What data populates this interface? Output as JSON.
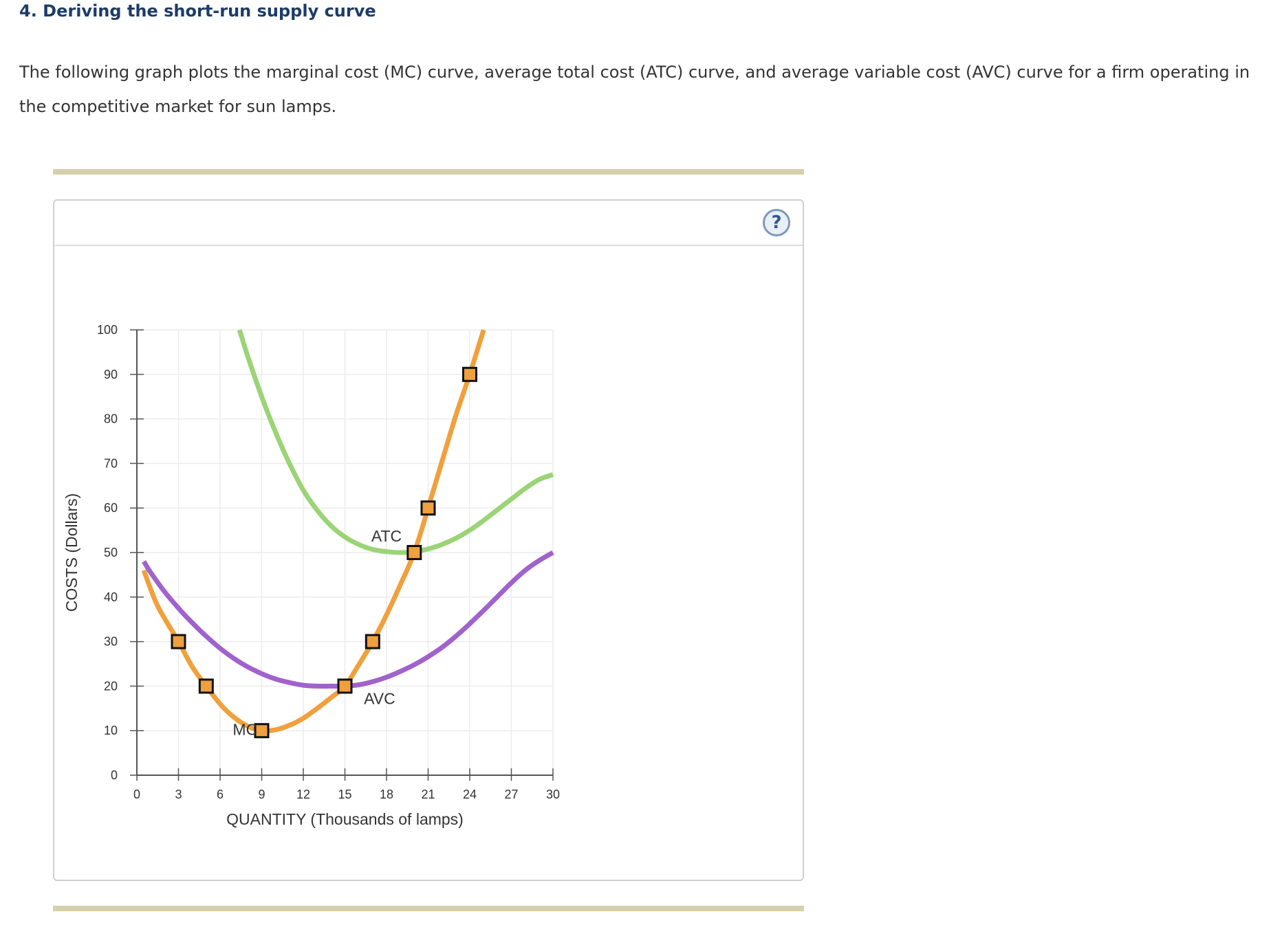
{
  "heading": "4. Deriving the short-run supply curve",
  "intro": "The following graph plots the marginal cost (MC) curve, average total cost (ATC) curve, and average variable cost (AVC) curve for a firm operating in the competitive market for sun lamps.",
  "help": {
    "label": "?"
  },
  "colors": {
    "mc": "#f0a03c",
    "atc": "#9bd476",
    "avc": "#a062cc",
    "rule": "#d6d0aa"
  },
  "chart_data": {
    "type": "line",
    "xlabel": "QUANTITY (Thousands of lamps)",
    "ylabel": "COSTS (Dollars)",
    "xlim": [
      0,
      30
    ],
    "ylim": [
      0,
      100
    ],
    "xticks": [
      0,
      3,
      6,
      9,
      12,
      15,
      18,
      21,
      24,
      27,
      30
    ],
    "yticks": [
      0,
      10,
      20,
      30,
      40,
      50,
      60,
      70,
      80,
      90,
      100
    ],
    "grid": true,
    "series": [
      {
        "name": "MC",
        "color": "#f0a03c",
        "points": [
          [
            0.5,
            46
          ],
          [
            1.5,
            38
          ],
          [
            3,
            30
          ],
          [
            4,
            24.3
          ],
          [
            5,
            20
          ],
          [
            6,
            16
          ],
          [
            7,
            13
          ],
          [
            8,
            11
          ],
          [
            9,
            10
          ],
          [
            10,
            10.2
          ],
          [
            11,
            11.2
          ],
          [
            12,
            12.8
          ],
          [
            13,
            15
          ],
          [
            14,
            17.4
          ],
          [
            15,
            20
          ],
          [
            16,
            24.8
          ],
          [
            17,
            30
          ],
          [
            18,
            36
          ],
          [
            19,
            42.8
          ],
          [
            20,
            50
          ],
          [
            21,
            60
          ],
          [
            22,
            70.5
          ],
          [
            23,
            80.8
          ],
          [
            24,
            90
          ],
          [
            24.5,
            95
          ],
          [
            25,
            100
          ]
        ],
        "markers": [
          [
            3,
            30
          ],
          [
            5,
            20
          ],
          [
            9,
            10
          ],
          [
            15,
            20
          ],
          [
            17,
            30
          ],
          [
            20,
            50
          ],
          [
            21,
            60
          ],
          [
            24,
            90
          ]
        ]
      },
      {
        "name": "ATC",
        "color": "#9bd476",
        "points": [
          [
            7.4,
            100
          ],
          [
            8,
            94
          ],
          [
            9,
            85
          ],
          [
            10,
            77
          ],
          [
            11,
            70
          ],
          [
            12,
            64
          ],
          [
            13,
            59.5
          ],
          [
            14,
            56
          ],
          [
            15,
            53.5
          ],
          [
            16,
            51.8
          ],
          [
            17,
            50.7
          ],
          [
            18,
            50.2
          ],
          [
            19,
            50
          ],
          [
            20,
            50.2
          ],
          [
            21,
            50.8
          ],
          [
            22,
            51.8
          ],
          [
            23,
            53.2
          ],
          [
            24,
            55
          ],
          [
            25,
            57.2
          ],
          [
            26,
            59.6
          ],
          [
            27,
            62
          ],
          [
            28,
            64.4
          ],
          [
            29,
            66.4
          ],
          [
            30,
            67.5
          ]
        ]
      },
      {
        "name": "AVC",
        "color": "#a062cc",
        "points": [
          [
            0.5,
            48
          ],
          [
            1,
            45.5
          ],
          [
            2,
            41.2
          ],
          [
            3,
            37.5
          ],
          [
            4,
            34.2
          ],
          [
            5,
            31.2
          ],
          [
            6,
            28.5
          ],
          [
            7,
            26.2
          ],
          [
            8,
            24.3
          ],
          [
            9,
            22.8
          ],
          [
            10,
            21.6
          ],
          [
            11,
            20.8
          ],
          [
            12,
            20.2
          ],
          [
            13,
            20
          ],
          [
            14,
            20
          ],
          [
            15,
            20
          ],
          [
            16,
            20.3
          ],
          [
            17,
            21
          ],
          [
            18,
            22
          ],
          [
            19,
            23.3
          ],
          [
            20,
            24.8
          ],
          [
            21,
            26.6
          ],
          [
            22,
            28.7
          ],
          [
            23,
            31.2
          ],
          [
            24,
            34
          ],
          [
            25,
            37
          ],
          [
            26,
            40.1
          ],
          [
            27,
            43.2
          ],
          [
            28,
            46
          ],
          [
            29,
            48.2
          ],
          [
            30,
            50
          ]
        ]
      }
    ],
    "annotations": [
      {
        "text": "ATC",
        "x": 18,
        "y": 52.5
      },
      {
        "text": "AVC",
        "x": 17.5,
        "y": 16
      },
      {
        "text": "MC",
        "x": 7.8,
        "y": 9
      }
    ]
  }
}
